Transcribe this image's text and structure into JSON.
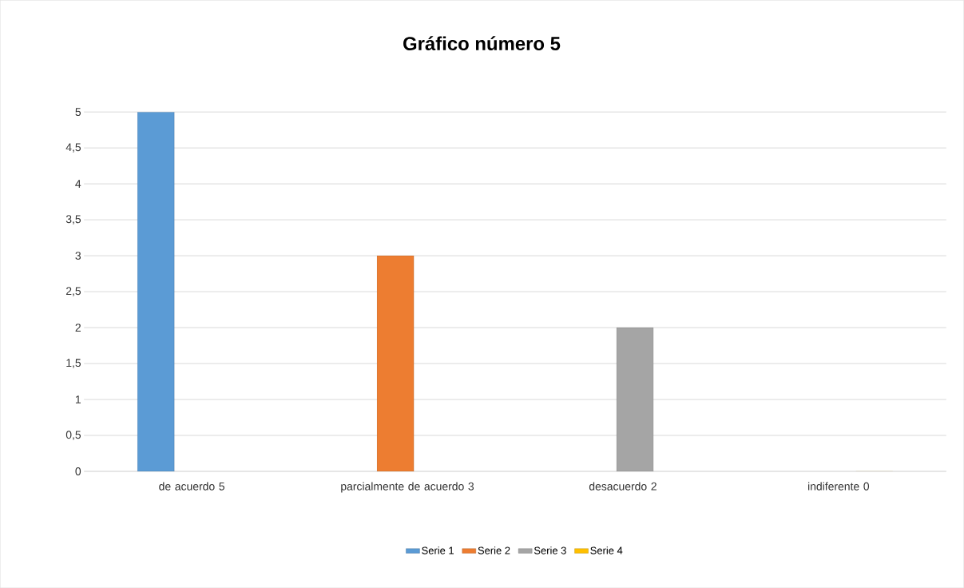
{
  "chart_data": {
    "type": "bar",
    "title": "Gráfico número 5",
    "categories": [
      "de acuerdo 5",
      "parcialmente de acuerdo 3",
      "desacuerdo 2",
      "indiferente 0"
    ],
    "series": [
      {
        "name": "Serie 1",
        "color": "#5b9bd5",
        "values": [
          5,
          null,
          null,
          null
        ]
      },
      {
        "name": "Serie 2",
        "color": "#ed7d31",
        "values": [
          null,
          3,
          null,
          null
        ]
      },
      {
        "name": "Serie 3",
        "color": "#a5a5a5",
        "values": [
          null,
          null,
          2,
          null
        ]
      },
      {
        "name": "Serie 4",
        "color": "#ffc000",
        "values": [
          null,
          null,
          null,
          0
        ]
      }
    ],
    "ylim": [
      0,
      5
    ],
    "yticks": [
      0,
      {
        "value": 0.5,
        "label": "0,5"
      },
      1,
      {
        "value": 1.5,
        "label": "1,5"
      },
      2,
      {
        "value": 2.5,
        "label": "2,5"
      },
      3,
      {
        "value": 3.5,
        "label": "3,5"
      },
      4,
      {
        "value": 4.5,
        "label": "4,5"
      },
      5
    ],
    "grid": "y",
    "legend": "bottom"
  }
}
